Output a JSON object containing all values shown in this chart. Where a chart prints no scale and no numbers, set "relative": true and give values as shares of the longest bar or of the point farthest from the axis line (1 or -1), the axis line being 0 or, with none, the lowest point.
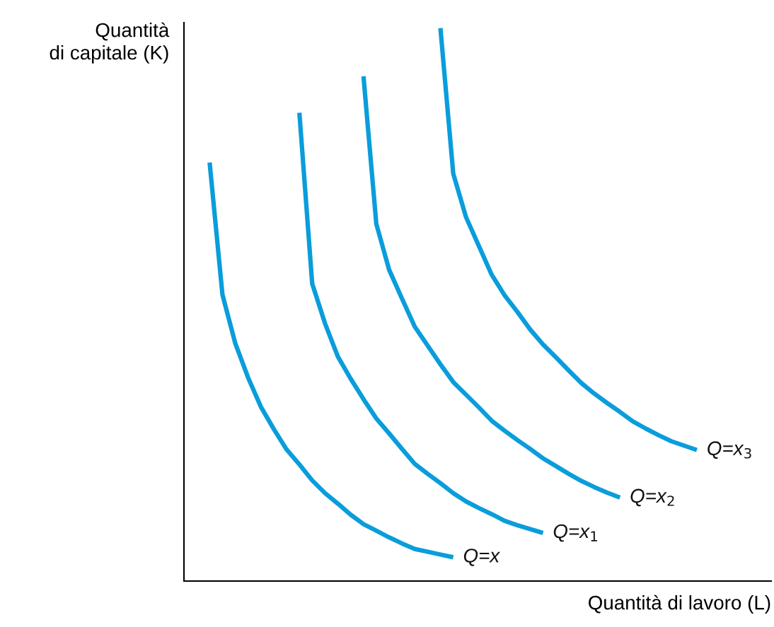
{
  "chart_data": {
    "type": "line",
    "relative": true,
    "xlabel": "Quantità di lavoro (L)",
    "ylabel": "Quantità\ndi capitale (K)",
    "categories": [
      null,
      null,
      null,
      null,
      null,
      null,
      null,
      null,
      null,
      null,
      null,
      null,
      null,
      null,
      null,
      null,
      null,
      null,
      null,
      null,
      null,
      null,
      null,
      null,
      null,
      null,
      null,
      null,
      null,
      null,
      null,
      null,
      null,
      null,
      null,
      null,
      null,
      null,
      null
    ],
    "series": [
      {
        "name": "Q=x",
        "color": "#0a9ddb",
        "values": [
          0.757,
          0.518,
          0.43,
          0.368,
          0.315,
          0.275,
          0.238,
          0.211,
          0.182,
          0.159,
          0.14,
          0.12,
          0.103,
          0.091,
          0.079,
          0.068,
          0.058,
          0.053,
          0.048,
          0.043,
          null,
          null,
          null,
          null,
          null,
          null,
          null,
          null,
          null,
          null,
          null,
          null,
          null,
          null,
          null,
          null,
          null,
          null,
          null
        ]
      },
      {
        "name": "Q=x$_{1}$",
        "color": "#0a9ddb",
        "values": [
          null,
          null,
          null,
          null,
          null,
          null,
          null,
          0.847,
          0.538,
          0.466,
          0.406,
          0.366,
          0.329,
          0.294,
          0.267,
          0.239,
          0.212,
          0.194,
          0.177,
          0.159,
          0.144,
          0.132,
          0.121,
          0.109,
          0.101,
          0.094,
          0.087,
          null,
          null,
          null,
          null,
          null,
          null,
          null,
          null,
          null,
          null,
          null,
          null
        ]
      },
      {
        "name": "Q=x$_{2}$",
        "color": "#0a9ddb",
        "values": [
          null,
          null,
          null,
          null,
          null,
          null,
          null,
          null,
          null,
          null,
          null,
          null,
          0.913,
          0.646,
          0.563,
          0.511,
          0.46,
          0.426,
          0.392,
          0.36,
          0.337,
          0.314,
          0.29,
          0.272,
          0.255,
          0.239,
          0.222,
          0.208,
          0.194,
          0.181,
          0.17,
          0.16,
          0.151,
          null,
          null,
          null,
          null,
          null,
          null
        ]
      },
      {
        "name": "Q=x$_{3}$",
        "color": "#0a9ddb",
        "values": [
          null,
          null,
          null,
          null,
          null,
          null,
          null,
          null,
          null,
          null,
          null,
          null,
          null,
          null,
          null,
          null,
          null,
          null,
          1.0,
          0.737,
          0.658,
          0.606,
          0.554,
          0.517,
          0.487,
          0.455,
          0.428,
          0.405,
          0.381,
          0.358,
          0.339,
          0.322,
          0.306,
          0.289,
          0.276,
          0.264,
          0.253,
          0.245,
          0.237
        ]
      }
    ]
  }
}
